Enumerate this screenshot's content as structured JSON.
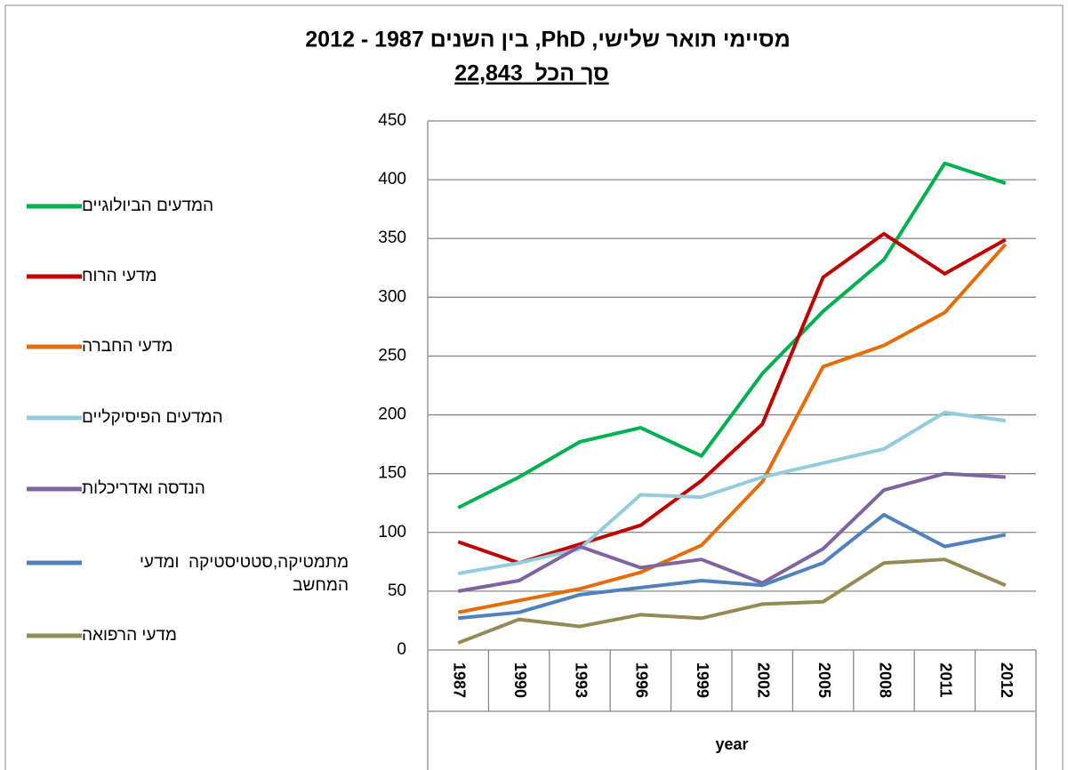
{
  "chart_data": {
    "type": "line",
    "title": "מסיימי תואר שלישי, PhD, בין השנים 1987 - 2012",
    "subtitle": "סך הכל  22,843",
    "xlabel": "year",
    "categories": [
      "1987",
      "1990",
      "1993",
      "1996",
      "1999",
      "2002",
      "2005",
      "2008",
      "2011",
      "2012"
    ],
    "series": [
      {
        "name": "המדעים הביולוגיים",
        "color": "#00b050",
        "values": [
          121,
          147,
          177,
          189,
          165,
          235,
          288,
          332,
          414,
          397
        ]
      },
      {
        "name": "מדעי הרוח",
        "color": "#c00000",
        "values": [
          92,
          74,
          90,
          106,
          144,
          192,
          317,
          354,
          320,
          349
        ]
      },
      {
        "name": "מדעי החברה",
        "color": "#e46c0a",
        "values": [
          32,
          42,
          52,
          66,
          89,
          143,
          241,
          259,
          287,
          345
        ]
      },
      {
        "name": "המדעים הפיסיקליים",
        "color": "#93cddd",
        "values": [
          65,
          74,
          86,
          132,
          130,
          147,
          159,
          171,
          202,
          195
        ]
      },
      {
        "name": "הנדסה ואדריכלות",
        "color": "#8064a2",
        "values": [
          50,
          59,
          88,
          70,
          77,
          57,
          86,
          136,
          150,
          147
        ]
      },
      {
        "name": "מתמטיקה,סטטיסטיקה  ומדעי המחשב",
        "color": "#4f81bd",
        "values": [
          27,
          32,
          47,
          53,
          59,
          55,
          74,
          115,
          88,
          98
        ]
      },
      {
        "name": "מדעי הרפואה",
        "color": "#948a54",
        "values": [
          6,
          26,
          20,
          30,
          27,
          39,
          41,
          74,
          77,
          55
        ]
      }
    ],
    "ylim": [
      0,
      450
    ],
    "yticks": [
      0,
      50,
      100,
      150,
      200,
      250,
      300,
      350,
      400,
      450
    ],
    "grid": true
  }
}
